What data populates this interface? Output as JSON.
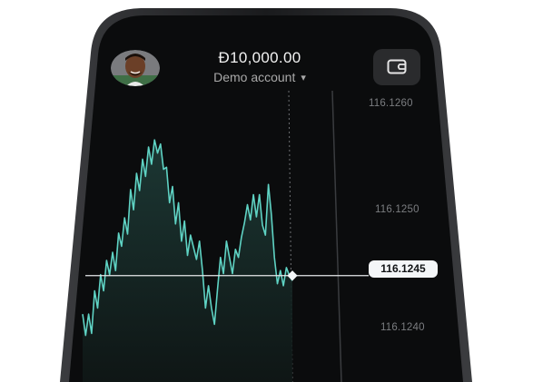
{
  "header": {
    "balance": "Đ10,000.00",
    "account_label": "Demo account",
    "account_chevron": "⌄",
    "wallet_icon": "wallet-icon",
    "avatar_icon": "user-avatar"
  },
  "chart_data": {
    "type": "area",
    "title": "",
    "xlabel": "",
    "ylabel": "",
    "ylim": [
      116.12345,
      116.1262
    ],
    "y_ticks": [
      "116.1260",
      "116.1250",
      "116.1240"
    ],
    "current_price": "116.1245",
    "series": [
      {
        "name": "price",
        "values": [
          116.12412,
          116.12391,
          116.12412,
          116.12393,
          116.12435,
          116.12418,
          116.12451,
          116.12435,
          116.12465,
          116.12451,
          116.12473,
          116.12455,
          116.12492,
          116.12479,
          116.12507,
          116.12491,
          116.12535,
          116.12515,
          116.12551,
          116.12534,
          116.12565,
          116.12548,
          116.12577,
          116.1256,
          116.12584,
          116.12571,
          116.1258,
          116.12555,
          116.12557,
          116.12522,
          116.12538,
          116.12501,
          116.12522,
          116.12484,
          116.12504,
          116.1247,
          116.1249,
          116.12478,
          116.12466,
          116.12484,
          116.12455,
          116.12418,
          116.1244,
          116.12418,
          116.12402,
          116.12436,
          116.12468,
          116.12452,
          116.12484,
          116.12468,
          116.12452,
          116.12476,
          116.12468,
          116.12488,
          116.12502,
          116.1252,
          116.12505,
          116.1253,
          116.12508,
          116.1253,
          116.125,
          116.1249,
          116.1254,
          116.1251,
          116.12468,
          116.12442,
          116.12455,
          116.1244,
          116.12458,
          116.1245,
          116.12445
        ]
      }
    ]
  }
}
